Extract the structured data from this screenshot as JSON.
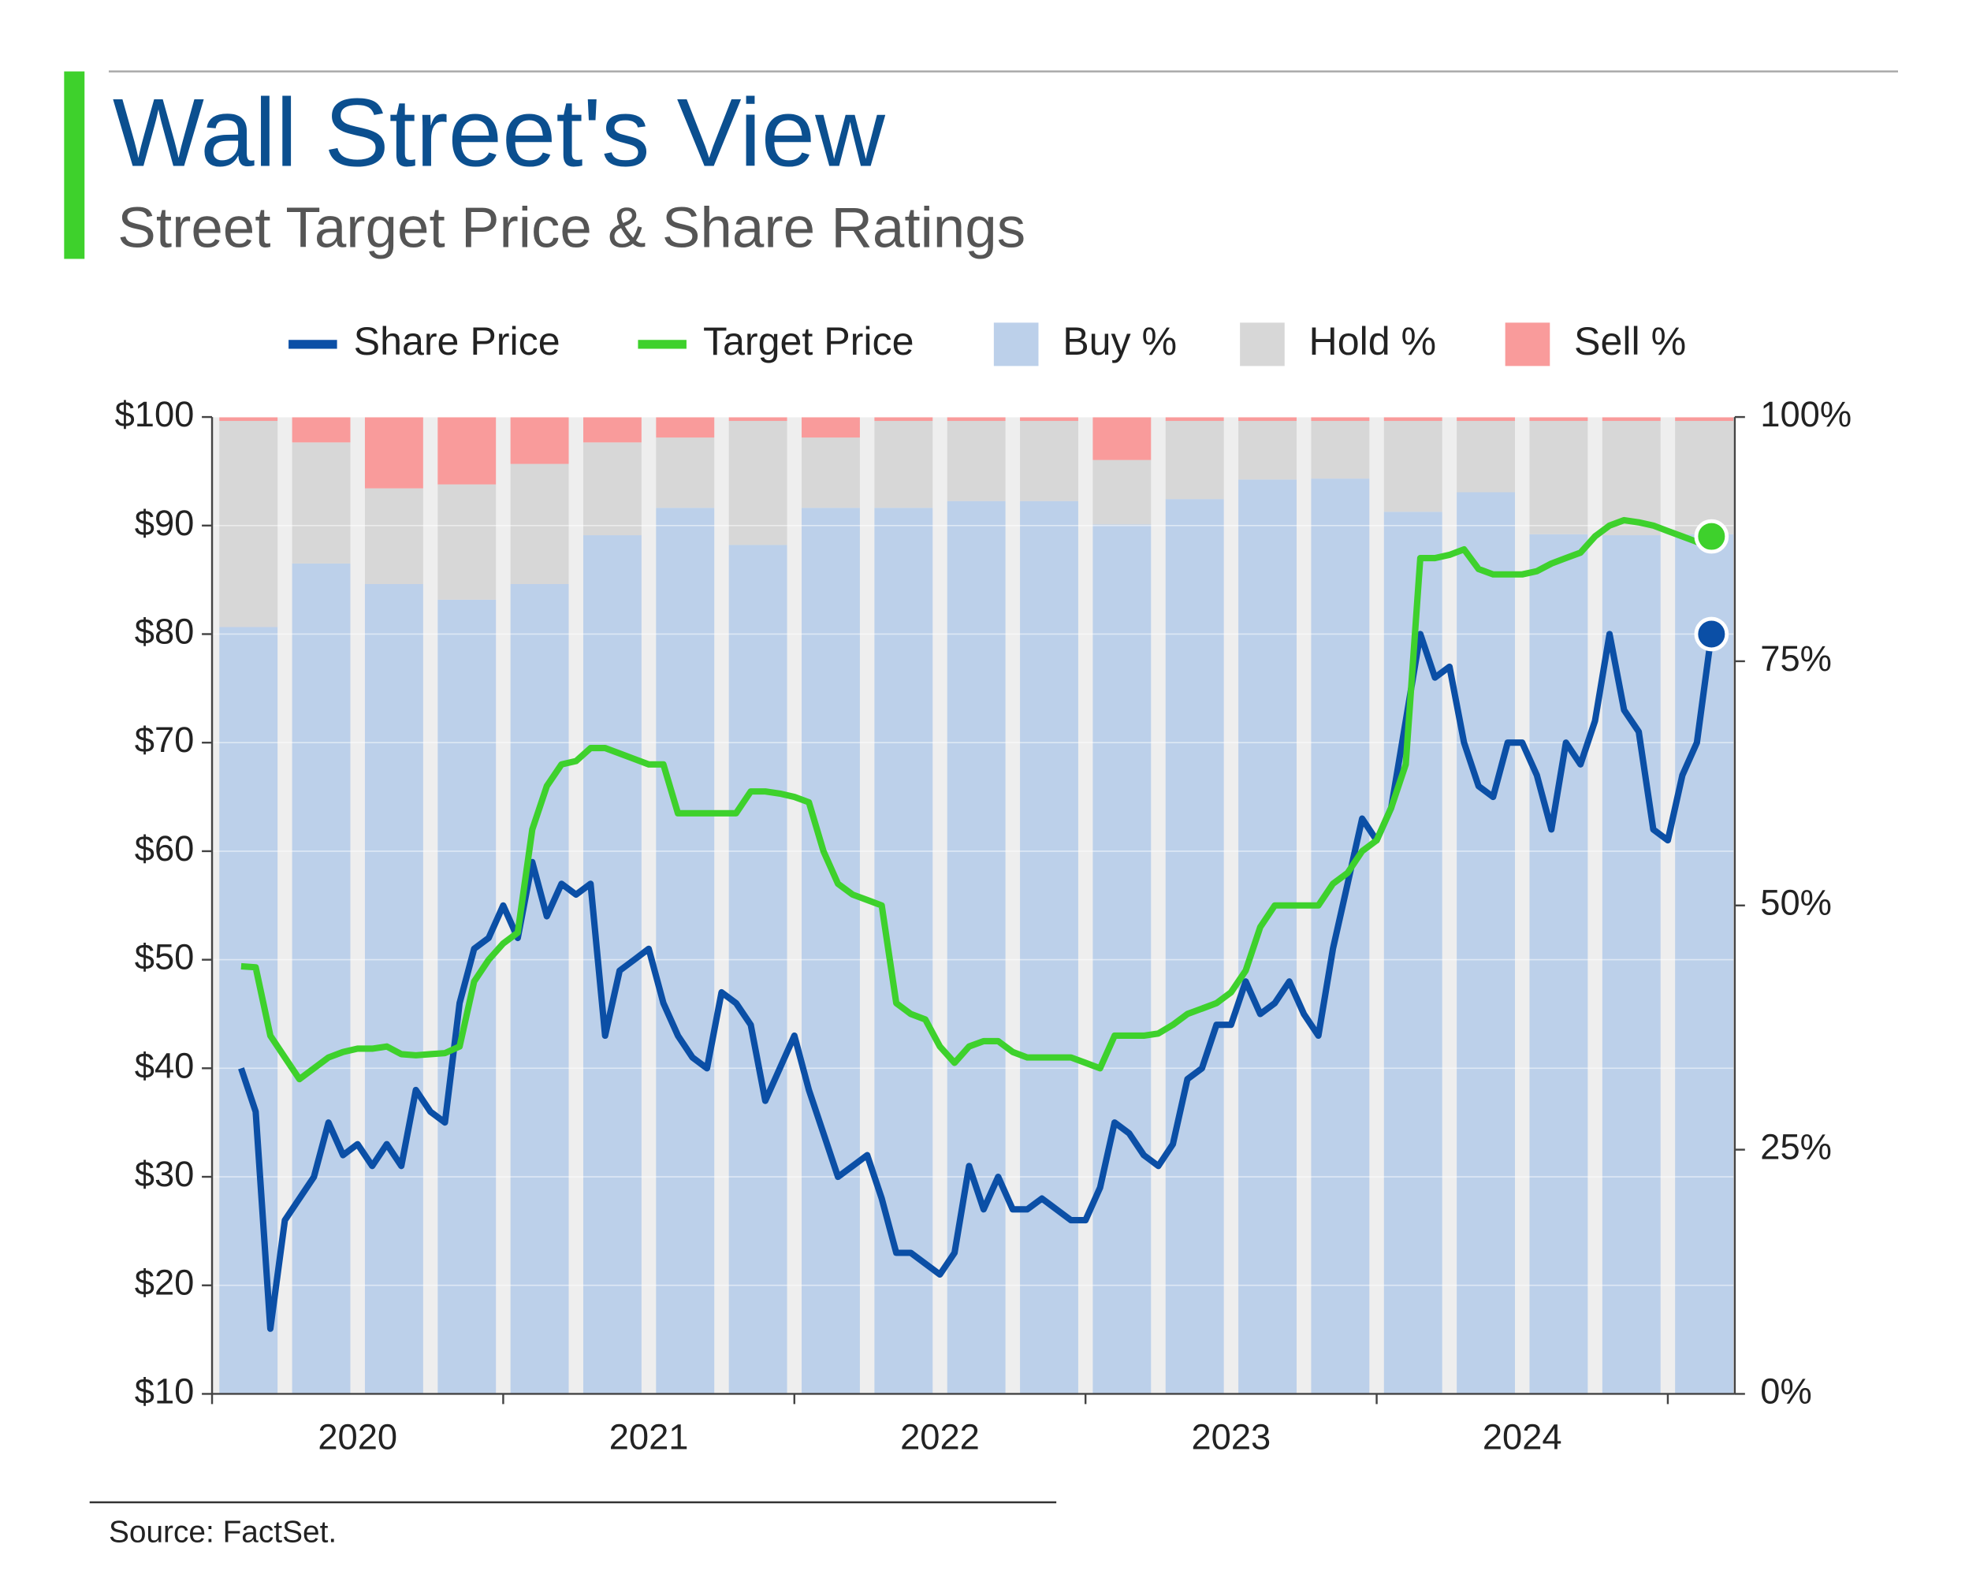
{
  "chart_data": {
    "type": "combo",
    "title": "Wall Street's View",
    "subtitle": "Street Target Price & Share Ratings",
    "source": "Source: FactSet.",
    "x": [
      2020.1,
      2020.15,
      2020.2,
      2020.25,
      2020.3,
      2020.35,
      2020.4,
      2020.45,
      2020.5,
      2020.55,
      2020.6,
      2020.65,
      2020.7,
      2020.75,
      2020.8,
      2020.85,
      2020.9,
      2020.95,
      2021.0,
      2021.05,
      2021.1,
      2021.15,
      2021.2,
      2021.25,
      2021.3,
      2021.35,
      2021.4,
      2021.45,
      2021.5,
      2021.55,
      2021.6,
      2021.65,
      2021.7,
      2021.75,
      2021.8,
      2021.85,
      2021.9,
      2021.95,
      2022.0,
      2022.05,
      2022.1,
      2022.15,
      2022.2,
      2022.25,
      2022.3,
      2022.35,
      2022.4,
      2022.45,
      2022.5,
      2022.55,
      2022.6,
      2022.65,
      2022.7,
      2022.75,
      2022.8,
      2022.85,
      2022.9,
      2022.95,
      2023.0,
      2023.05,
      2023.1,
      2023.15,
      2023.2,
      2023.25,
      2023.3,
      2023.35,
      2023.4,
      2023.45,
      2023.5,
      2023.55,
      2023.6,
      2023.65,
      2023.7,
      2023.75,
      2023.8,
      2023.85,
      2023.9,
      2023.95,
      2024.0,
      2024.05,
      2024.1,
      2024.15,
      2024.2,
      2024.25,
      2024.3,
      2024.35,
      2024.4,
      2024.45,
      2024.5,
      2024.55,
      2024.6,
      2024.65,
      2024.7,
      2024.75,
      2024.8,
      2024.85,
      2024.9,
      2024.95,
      2025.0,
      2025.05,
      2025.1,
      2025.15
    ],
    "categories": [
      null,
      null,
      null,
      null,
      null,
      null,
      null,
      null,
      null,
      null,
      null,
      null,
      null,
      null,
      null,
      null,
      null,
      null,
      null,
      null,
      null
    ],
    "series": [
      {
        "name": "Share Price",
        "type": "line",
        "color": "#0b4fa6",
        "values": [
          40,
          36,
          16,
          26,
          28,
          30,
          35,
          32,
          33,
          31,
          33,
          31,
          38,
          36,
          35,
          46,
          51,
          52,
          55,
          52,
          59,
          54,
          57,
          56,
          57,
          43,
          49,
          50,
          51,
          46,
          43,
          41,
          40,
          47,
          46,
          44,
          37,
          40,
          43,
          38,
          34,
          30,
          31,
          32,
          28,
          23,
          23,
          22,
          21,
          23,
          31,
          27,
          30,
          27,
          27,
          28,
          27,
          26,
          26,
          29,
          35,
          34,
          32,
          31,
          33,
          39,
          40,
          44,
          44,
          48,
          45,
          46,
          48,
          45,
          43,
          51,
          57,
          63,
          61,
          64,
          72,
          80,
          76,
          77,
          70,
          66,
          65,
          70,
          70,
          67,
          62,
          70,
          68,
          72,
          80,
          73,
          71,
          62,
          61,
          67,
          70,
          80
        ]
      },
      {
        "name": "Target Price",
        "type": "line",
        "color": "#3ed12c",
        "values": [
          49.4,
          49.3,
          43,
          41,
          39,
          40,
          41,
          41.5,
          41.8,
          41.8,
          42,
          41.3,
          41.2,
          41.3,
          41.4,
          42,
          48,
          50,
          51.5,
          52.5,
          62,
          66,
          68,
          68.3,
          69.5,
          69.5,
          69,
          68.5,
          68,
          68,
          63.5,
          63.5,
          63.5,
          63.5,
          63.5,
          65.5,
          65.5,
          65.3,
          65,
          64.5,
          60,
          57,
          56,
          55.5,
          55,
          46,
          45,
          44.5,
          42,
          40.5,
          42,
          42.5,
          42.5,
          41.5,
          41,
          41,
          41,
          41,
          40.5,
          40,
          43,
          43,
          43,
          43.2,
          44,
          45,
          45.5,
          46,
          47,
          49,
          53,
          55,
          55,
          55,
          55,
          57,
          58,
          60,
          61,
          64,
          68,
          87,
          87,
          87.3,
          87.8,
          86,
          85.5,
          85.5,
          85.5,
          85.8,
          86.5,
          87,
          87.5,
          89,
          90,
          90.5,
          90.3,
          90,
          89.5,
          89,
          88.5,
          89
        ]
      },
      {
        "name": "Buy %",
        "type": "bar",
        "axis": "y2",
        "color": "#bcd0ea",
        "values": [
          78.5,
          85,
          82.9,
          81.3,
          82.9,
          87.9,
          90.7,
          86.9,
          90.7,
          90.7,
          91.4,
          91.4,
          89,
          91.6,
          93.6,
          93.7,
          90.3,
          92.3,
          88,
          87.9,
          88
        ]
      },
      {
        "name": "Hold %",
        "type": "bar",
        "axis": "y2",
        "color": "#d7d7d7",
        "values": [
          21.1,
          12.4,
          9.8,
          11.8,
          12.3,
          9.5,
          7.2,
          12.7,
          7.2,
          8.9,
          8.2,
          8.2,
          6.6,
          8,
          6,
          5.9,
          9.3,
          7.3,
          11.6,
          11.7,
          11.6
        ]
      },
      {
        "name": "Sell %",
        "type": "bar",
        "axis": "y2",
        "color": "#f99b9b",
        "values": [
          0.4,
          2.6,
          7.3,
          6.9,
          4.8,
          2.6,
          2.1,
          0.4,
          2.1,
          0.4,
          0.4,
          0.4,
          4.4,
          0.4,
          0.4,
          0.4,
          0.4,
          0.4,
          0.4,
          0.4,
          0.4
        ]
      }
    ],
    "xlim": [
      2020,
      2025.23
    ],
    "xticks": [
      {
        "value": 2020.5,
        "label": "2020"
      },
      {
        "value": 2021.5,
        "label": "2021"
      },
      {
        "value": 2022.5,
        "label": "2022"
      },
      {
        "value": 2023.5,
        "label": "2023"
      },
      {
        "value": 2024.5,
        "label": "2024"
      }
    ],
    "ylim": [
      10,
      100
    ],
    "yticks": [
      {
        "value": 10,
        "label": "$10"
      },
      {
        "value": 20,
        "label": "$20"
      },
      {
        "value": 30,
        "label": "$30"
      },
      {
        "value": 40,
        "label": "$40"
      },
      {
        "value": 50,
        "label": "$50"
      },
      {
        "value": 60,
        "label": "$60"
      },
      {
        "value": 70,
        "label": "$70"
      },
      {
        "value": 80,
        "label": "$80"
      },
      {
        "value": 90,
        "label": "$90"
      },
      {
        "value": 100,
        "label": "$100"
      }
    ],
    "y2lim": [
      0,
      100
    ],
    "y2ticks": [
      {
        "value": 0,
        "label": "0%"
      },
      {
        "value": 25,
        "label": "25%"
      },
      {
        "value": 50,
        "label": "50%"
      },
      {
        "value": 75,
        "label": "75%"
      },
      {
        "value": 100,
        "label": "100%"
      }
    ],
    "grid": true,
    "legend": "top"
  }
}
